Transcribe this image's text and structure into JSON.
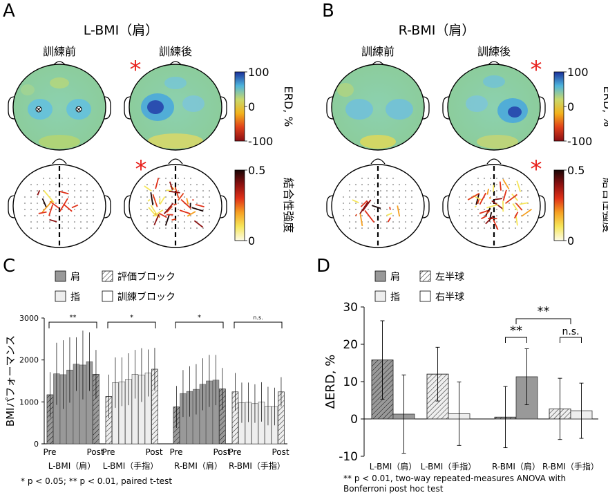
{
  "panels": {
    "A": {
      "letter": "A",
      "title": "L-BMI（肩）",
      "col_pre": "訓練前",
      "col_post": "訓練後"
    },
    "B": {
      "letter": "B",
      "title": "R-BMI（肩）",
      "col_pre": "訓練前",
      "col_post": "訓練後"
    },
    "C": {
      "letter": "C"
    },
    "D": {
      "letter": "D"
    }
  },
  "significance_star": "*",
  "colorbars": {
    "erd": {
      "label": "ERD, %",
      "ticks": [
        "100",
        "0",
        "-100"
      ],
      "colors": [
        "#1a2f9a",
        "#4db4dc",
        "#c9d96c",
        "#f2b21c",
        "#e0401a",
        "#8a0e14"
      ]
    },
    "coupling": {
      "label": "結合性強度",
      "ticks": [
        "0.5",
        "0"
      ],
      "colors": [
        "#1a0606",
        "#8a1010",
        "#e03018",
        "#f6a022",
        "#f6e65a",
        "#fdfbe6"
      ]
    }
  },
  "colors": {
    "dark_bar": "#999999",
    "light_bar": "#eeeeee",
    "star": "#e8221e"
  },
  "chart_data": [
    {
      "type": "bar",
      "panel": "C",
      "ylabel": "BMIパフォーマンス",
      "ylim": [
        0,
        3000
      ],
      "yticks": [
        "0",
        "1000",
        "2000",
        "3000"
      ],
      "legend": {
        "items": [
          "肩",
          "評価ブロック",
          "指",
          "訓練ブロック"
        ],
        "position": "top"
      },
      "groups": [
        {
          "name": "L-BMI（肩）",
          "fill": "dark",
          "values": [
            1170,
            1670,
            1650,
            1760,
            1900,
            1880,
            1960,
            1660
          ],
          "errors": [
            540,
            740,
            820,
            780,
            640,
            820,
            700,
            580
          ],
          "sig": "**"
        },
        {
          "name": "L-BMI（手指）",
          "fill": "light",
          "values": [
            1130,
            1460,
            1480,
            1540,
            1660,
            1640,
            1690,
            1780
          ],
          "errors": [
            520,
            600,
            580,
            620,
            580,
            640,
            560,
            510
          ],
          "sig": "*"
        },
        {
          "name": "R-BMI（肩）",
          "fill": "dark",
          "values": [
            880,
            1200,
            1250,
            1300,
            1420,
            1500,
            1520,
            1310
          ],
          "errors": [
            500,
            560,
            600,
            600,
            620,
            620,
            600,
            500
          ],
          "sig": "*"
        },
        {
          "name": "R-BMI（手指）",
          "fill": "light",
          "values": [
            1240,
            980,
            990,
            960,
            1000,
            900,
            890,
            1240
          ],
          "errors": [
            450,
            480,
            470,
            460,
            470,
            460,
            450,
            350
          ],
          "sig": "n.s."
        }
      ],
      "tick_pre": "Pre",
      "tick_post": "Post",
      "footnote": "* p < 0.05; ** p < 0.01, paired t-test"
    },
    {
      "type": "bar",
      "panel": "D",
      "ylabel": "ΔERD, %",
      "ylim": [
        -10,
        30
      ],
      "yticks": [
        "-10",
        "0",
        "10",
        "20",
        "30"
      ],
      "legend": {
        "items": [
          "肩",
          "左半球",
          "指",
          "右半球"
        ],
        "position": "top"
      },
      "groups": [
        {
          "name": "L-BMI（肩）",
          "fill": "dark",
          "left": 15.8,
          "right": 1.3,
          "left_err": 10.5,
          "right_err": 10.5
        },
        {
          "name": "L-BMI（手指）",
          "fill": "light",
          "left": 12.0,
          "right": 1.4,
          "left_err": 7.2,
          "right_err": 8.5
        },
        {
          "name": "R-BMI（肩）",
          "fill": "dark",
          "left": 0.5,
          "right": 11.3,
          "left_err": 8.2,
          "right_err": 7.5
        },
        {
          "name": "R-BMI（手指）",
          "fill": "light",
          "left": 2.7,
          "right": 2.2,
          "left_err": 8.2,
          "right_err": 7.4
        }
      ],
      "sig": [
        "**",
        "n.s.",
        "**"
      ],
      "footnote_1": "** p < 0.01, two-way repeated-measures ANOVA with",
      "footnote_2": "Bonferroni post hoc test"
    }
  ]
}
